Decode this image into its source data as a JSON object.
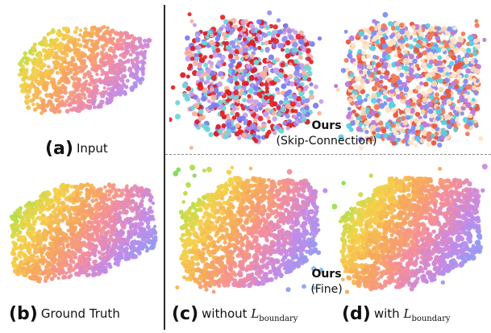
{
  "captions": {
    "a": {
      "tag": "(a)",
      "text": "Input"
    },
    "b": {
      "tag": "(b)",
      "text": "Ground Truth"
    },
    "c": {
      "tag": "(c)",
      "text": "without",
      "math": "L",
      "sub": "boundary"
    },
    "d": {
      "tag": "(d)",
      "text": "with",
      "math": "L",
      "sub": "boundary"
    }
  },
  "labels": {
    "skip": {
      "title": "Ours",
      "subtitle": "(Skip-Connection)"
    },
    "fine": {
      "title": "Ours",
      "subtitle": "(Fine)"
    }
  },
  "palette": {
    "gradient": [
      "#2fd06a",
      "#a8e04a",
      "#f5d24a",
      "#f7a85a",
      "#f48c9c",
      "#c489e8",
      "#8f9df2",
      "#7fd6e0"
    ],
    "skip_left": [
      "#e8262b",
      "#d81f2a",
      "#7a7ef0",
      "#9a8ef2",
      "#6fd6d6",
      "#f3b2a0",
      "#c9a0e8"
    ],
    "skip_right": [
      "#f07a5a",
      "#e7563f",
      "#f6d8b8",
      "#ffe6c8",
      "#7f8ff0",
      "#59d0e4",
      "#c07ad8"
    ]
  }
}
